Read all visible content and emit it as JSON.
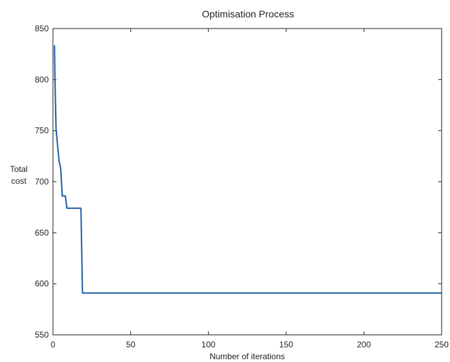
{
  "chart_data": {
    "type": "line",
    "title": "Optimisation Process",
    "xlabel": "Number of iterations",
    "ylabel": [
      "Total",
      "cost"
    ],
    "xlim": [
      0,
      250
    ],
    "ylim": [
      550,
      850
    ],
    "xticks": [
      0,
      50,
      100,
      150,
      200,
      250
    ],
    "yticks": [
      550,
      600,
      650,
      700,
      750,
      800,
      850
    ],
    "grid": false,
    "series": [
      {
        "color": "#1f5fa6",
        "points": [
          [
            1,
            833
          ],
          [
            1.3,
            800
          ],
          [
            2,
            752
          ],
          [
            3,
            735
          ],
          [
            4,
            720
          ],
          [
            5,
            713
          ],
          [
            6,
            686
          ],
          [
            8,
            686
          ],
          [
            9,
            674
          ],
          [
            18,
            674
          ],
          [
            19,
            591
          ],
          [
            250,
            591
          ]
        ]
      }
    ]
  }
}
